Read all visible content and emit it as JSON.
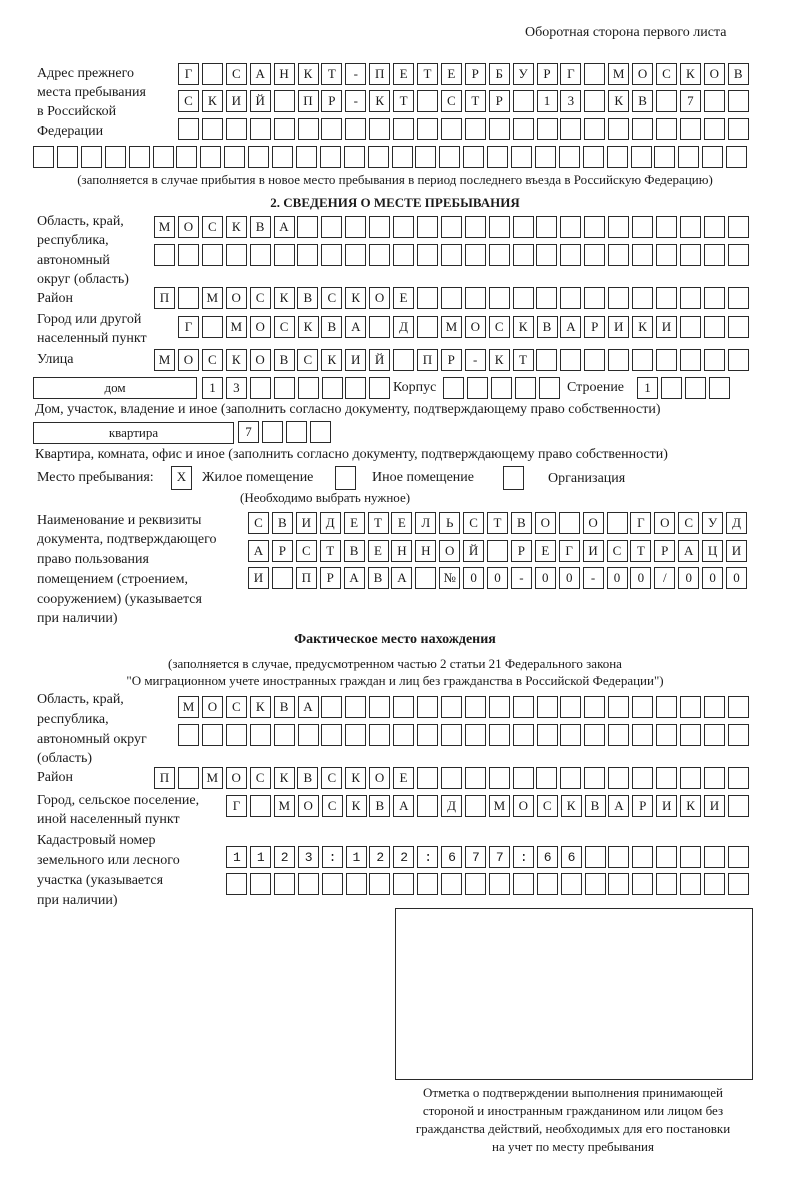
{
  "header": {
    "side_note": "Оборотная сторона первого листа"
  },
  "previous_address": {
    "label": [
      "Адрес прежнего",
      "места пребывания",
      "в Российской",
      "Федерации"
    ],
    "row1": "Г САНКТ-ПЕТЕРБУРГ МОСКОВ",
    "row2": "СКИЙ ПР-КТ СТР 13 КВ 7  ",
    "row3": "",
    "row4": "",
    "note": "(заполняется в случае прибытия в новое место пребывания в период последнего въезда в Российскую Федерацию)"
  },
  "section2": {
    "title": "2. СВЕДЕНИЯ О МЕСТЕ ПРЕБЫВАНИЯ",
    "region_label": [
      "Область, край,",
      "республика,",
      "автономный",
      "округ (область)"
    ],
    "region_row1": "МОСКВА",
    "region_row2": "",
    "district_label": "Район",
    "district": "П МОСКВСКОЕ",
    "city_label": [
      "Город или другой",
      "населенный пункт"
    ],
    "city": "Г МОСКВА Д МОСКВАРИКИ",
    "street_label": "Улица",
    "street": "МОСКОВСКИЙ ПР-КТ",
    "house_type": "дом",
    "house_number": "13",
    "korpus_label": "Корпус",
    "korpus": "",
    "building_label": "Строение",
    "building": "1",
    "house_note": "Дом, участок, владение и иное (заполнить согласно документу, подтверждающему право собственности)",
    "apartment_type": "квартира",
    "apartment_number": "7",
    "apartment_note": "Квартира, комната, офис и иное (заполнить согласно документу, подтверждающему право собственности)",
    "stay_place_label": "Место пребывания:",
    "options": [
      {
        "label": "Жилое помещение",
        "mark": "X",
        "checked": true
      },
      {
        "label": "Иное помещение",
        "mark": "",
        "checked": false
      },
      {
        "label": "Организация",
        "mark": "",
        "checked": false
      }
    ],
    "options_note": "(Необходимо выбрать нужное)",
    "doc_label": [
      "Наименование и реквизиты",
      "документа, подтверждающего",
      "право пользования",
      "помещением (строением,",
      "сооружением) (указывается",
      "при наличии)"
    ],
    "doc_row1": "СВИДЕТЕЛЬСТВО О ГОСУД",
    "doc_row2": "АРСТВЕННОЙ РЕГИСТРАЦИ",
    "doc_row3": "И ПРАВА №00-00-00/000"
  },
  "actual_location": {
    "title": "Фактическое место нахождения",
    "note": [
      "(заполняется в случае, предусмотренном частью 2 статьи 21 Федерального закона",
      "\"О миграционном учете иностранных граждан и лиц без гражданства в Российской Федерации\")"
    ],
    "region_label": [
      "Область, край,",
      "республика,",
      "автономный округ",
      "(область)"
    ],
    "region_row1": "МОСКВА",
    "region_row2": "",
    "district_label": "Район",
    "district": "П МОСКВСКОЕ",
    "city_label": [
      "Город, сельское поселение,",
      "иной населенный пункт"
    ],
    "city": "Г МОСКВА Д МОСКВАРИКИ",
    "cadastral_label": [
      "Кадастровый номер",
      "земельного или лесного",
      "участка (указывается",
      "при наличии)"
    ],
    "cadastral_row1": "1123:122:677:66",
    "cadastral_row2": ""
  },
  "confirmation": {
    "caption": [
      "Отметка о подтверждении выполнения принимающей",
      "стороной и иностранным гражданином или лицом без",
      "гражданства действий, необходимых для его постановки",
      "на учет по месту пребывания"
    ]
  }
}
